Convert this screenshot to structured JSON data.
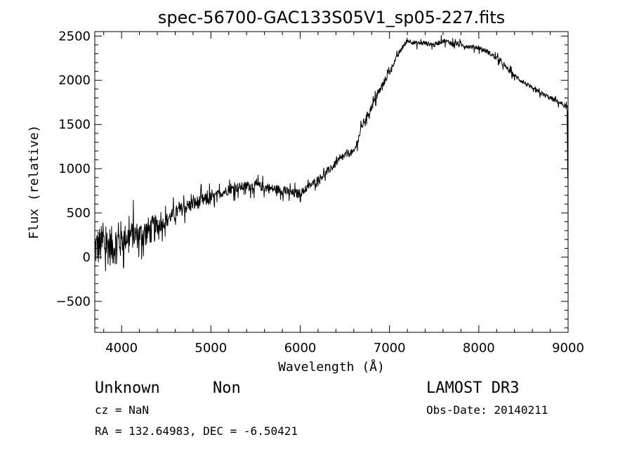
{
  "chart_data": {
    "type": "line",
    "title": "spec-56700-GAC133S05V1_sp05-227.fits",
    "xlabel": "Wavelength (Å)",
    "ylabel": "Flux (relative)",
    "xlim": [
      3700,
      9000
    ],
    "ylim": [
      -850,
      2550
    ],
    "x_ticks": [
      4000,
      5000,
      6000,
      7000,
      8000,
      9000
    ],
    "x_tick_labels": [
      "4000",
      "5000",
      "6000",
      "7000",
      "8000",
      "9000"
    ],
    "y_ticks": [
      -500,
      0,
      500,
      1000,
      1500,
      2000,
      2500
    ],
    "y_tick_labels": [
      "−500",
      "0",
      "500",
      "1000",
      "1500",
      "2000",
      "2500"
    ],
    "x_minor_step": 200,
    "y_minor_step": 100,
    "series": [
      {
        "name": "spectrum",
        "x": [
          3700,
          3800,
          3900,
          4000,
          4100,
          4200,
          4300,
          4400,
          4500,
          4600,
          4700,
          4800,
          4900,
          5000,
          5100,
          5200,
          5300,
          5400,
          5500,
          5600,
          5700,
          5800,
          5900,
          6000,
          6100,
          6200,
          6300,
          6400,
          6500,
          6550,
          6600,
          6700,
          6800,
          6900,
          7000,
          7100,
          7200,
          7300,
          7400,
          7500,
          7600,
          7700,
          7800,
          7900,
          8000,
          8100,
          8200,
          8300,
          8400,
          8500,
          8600,
          8700,
          8800,
          8900,
          8980
        ],
        "y": [
          100,
          150,
          120,
          200,
          250,
          250,
          300,
          330,
          420,
          500,
          560,
          600,
          640,
          660,
          720,
          760,
          790,
          800,
          810,
          790,
          770,
          760,
          720,
          720,
          800,
          880,
          960,
          1060,
          1150,
          1180,
          1180,
          1500,
          1700,
          1900,
          2100,
          2300,
          2450,
          2420,
          2420,
          2400,
          2450,
          2420,
          2400,
          2380,
          2370,
          2320,
          2250,
          2150,
          2050,
          1980,
          1900,
          1850,
          1800,
          1750,
          1700
        ]
      }
    ]
  },
  "info": {
    "object_class": "Unknown",
    "subclass": "Non",
    "survey": "LAMOST DR3",
    "cz": "cz = NaN",
    "obs_date": "Obs-Date: 20140211",
    "coords": "RA = 132.64983, DEC =  -6.50421"
  }
}
